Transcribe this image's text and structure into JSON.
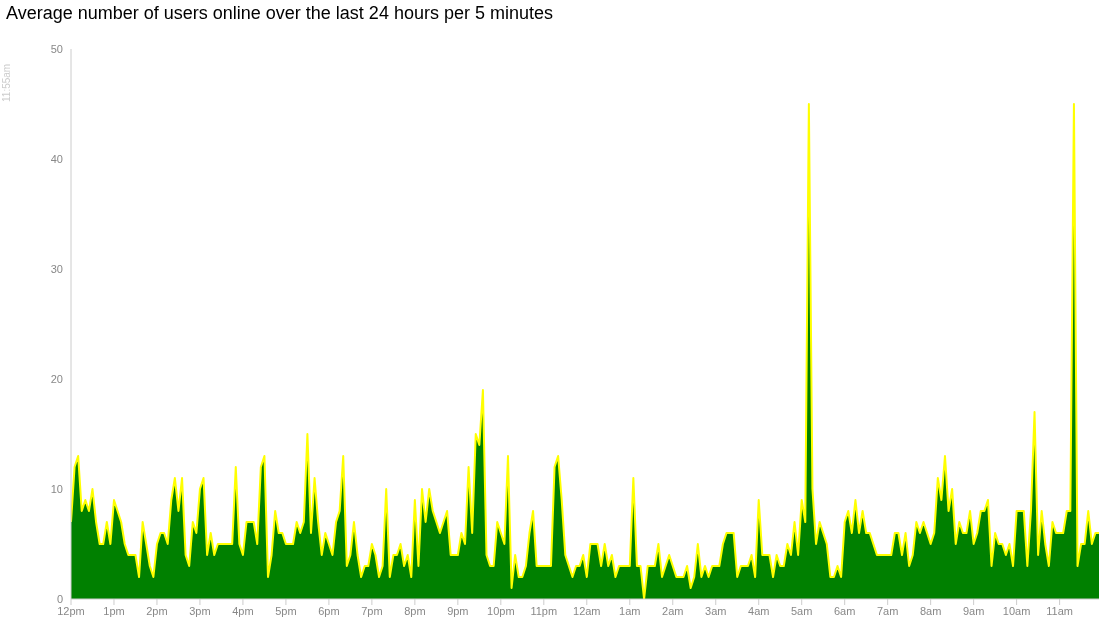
{
  "chart_data": {
    "type": "area",
    "title": "Average number of users online over the last 24 hours per 5 minutes",
    "annotations": [
      "11:55am"
    ],
    "categories": [
      "12pm",
      null,
      null,
      null,
      null,
      null,
      null,
      null,
      null,
      null,
      null,
      null,
      "1pm",
      null,
      null,
      null,
      null,
      null,
      null,
      null,
      null,
      null,
      null,
      null,
      "2pm",
      null,
      null,
      null,
      null,
      null,
      null,
      null,
      null,
      null,
      null,
      null,
      "3pm",
      null,
      null,
      null,
      null,
      null,
      null,
      null,
      null,
      null,
      null,
      null,
      "4pm",
      null,
      null,
      null,
      null,
      null,
      null,
      null,
      null,
      null,
      null,
      null,
      "5pm",
      null,
      null,
      null,
      null,
      null,
      null,
      null,
      null,
      null,
      null,
      null,
      "6pm",
      null,
      null,
      null,
      null,
      null,
      null,
      null,
      null,
      null,
      null,
      null,
      "7pm",
      null,
      null,
      null,
      null,
      null,
      null,
      null,
      null,
      null,
      null,
      null,
      "8pm",
      null,
      null,
      null,
      null,
      null,
      null,
      null,
      null,
      null,
      null,
      null,
      "9pm",
      null,
      null,
      null,
      null,
      null,
      null,
      null,
      null,
      null,
      null,
      null,
      "10pm",
      null,
      null,
      null,
      null,
      null,
      null,
      null,
      null,
      null,
      null,
      null,
      "11pm",
      null,
      null,
      null,
      null,
      null,
      null,
      null,
      null,
      null,
      null,
      null,
      "12am",
      null,
      null,
      null,
      null,
      null,
      null,
      null,
      null,
      null,
      null,
      null,
      "1am",
      null,
      null,
      null,
      null,
      null,
      null,
      null,
      null,
      null,
      null,
      null,
      "2am",
      null,
      null,
      null,
      null,
      null,
      null,
      null,
      null,
      null,
      null,
      null,
      "3am",
      null,
      null,
      null,
      null,
      null,
      null,
      null,
      null,
      null,
      null,
      null,
      "4am",
      null,
      null,
      null,
      null,
      null,
      null,
      null,
      null,
      null,
      null,
      null,
      "5am",
      null,
      null,
      null,
      null,
      null,
      null,
      null,
      null,
      null,
      null,
      null,
      "6am",
      null,
      null,
      null,
      null,
      null,
      null,
      null,
      null,
      null,
      null,
      null,
      "7am",
      null,
      null,
      null,
      null,
      null,
      null,
      null,
      null,
      null,
      null,
      null,
      "8am",
      null,
      null,
      null,
      null,
      null,
      null,
      null,
      null,
      null,
      null,
      null,
      "9am",
      null,
      null,
      null,
      null,
      null,
      null,
      null,
      null,
      null,
      null,
      null,
      "10am",
      null,
      null,
      null,
      null,
      null,
      null,
      null,
      null,
      null,
      null,
      null,
      "11am",
      null,
      null,
      null,
      null,
      null,
      null,
      null,
      null,
      null,
      null,
      null
    ],
    "series": [
      {
        "color": "#008000",
        "values": [
          7,
          12,
          13,
          8,
          9,
          8,
          10,
          7,
          5,
          5,
          7,
          5,
          9,
          8,
          7,
          5,
          4,
          4,
          4,
          2,
          7,
          5,
          3,
          2,
          5,
          6,
          6,
          5,
          9,
          11,
          8,
          11,
          4,
          3,
          7,
          6,
          10,
          11,
          4,
          6,
          4,
          5,
          5,
          5,
          5,
          5,
          12,
          5,
          4,
          7,
          7,
          7,
          5,
          12,
          13,
          2,
          4,
          8,
          6,
          6,
          5,
          5,
          5,
          7,
          6,
          7,
          15,
          6,
          11,
          7,
          4,
          6,
          5,
          4,
          7,
          8,
          13,
          3,
          4,
          7,
          4,
          2,
          3,
          3,
          5,
          4,
          2,
          3,
          10,
          2,
          4,
          4,
          5,
          3,
          4,
          2,
          9,
          3,
          10,
          7,
          10,
          8,
          7,
          6,
          7,
          8,
          4,
          4,
          4,
          6,
          5,
          12,
          6,
          15,
          14,
          19,
          4,
          3,
          3,
          7,
          6,
          5,
          13,
          1,
          4,
          2,
          2,
          3,
          6,
          8,
          3,
          3,
          3,
          3,
          3,
          12,
          13,
          9,
          4,
          3,
          2,
          3,
          3,
          4,
          2,
          5,
          5,
          5,
          3,
          5,
          3,
          4,
          2,
          3,
          3,
          3,
          3,
          11,
          3,
          3,
          0,
          3,
          3,
          3,
          5,
          2,
          3,
          4,
          3,
          2,
          2,
          2,
          3,
          1,
          2,
          5,
          2,
          3,
          2,
          3,
          3,
          3,
          5,
          6,
          6,
          6,
          2,
          3,
          3,
          3,
          4,
          2,
          9,
          4,
          4,
          4,
          2,
          4,
          3,
          3,
          5,
          4,
          7,
          4,
          9,
          7,
          45,
          10,
          5,
          7,
          6,
          5,
          2,
          2,
          3,
          2,
          7,
          8,
          6,
          9,
          6,
          8,
          6,
          6,
          5,
          4,
          4,
          4,
          4,
          4,
          6,
          6,
          4,
          6,
          3,
          4,
          7,
          6,
          7,
          6,
          5,
          6,
          11,
          9,
          13,
          8,
          10,
          5,
          7,
          6,
          6,
          8,
          5,
          6,
          8,
          8,
          9,
          3,
          6,
          5,
          5,
          4,
          5,
          3,
          8,
          8,
          8,
          3,
          8,
          17,
          4,
          8,
          5,
          3,
          7,
          6,
          6,
          6,
          8,
          8,
          45,
          3,
          5,
          5,
          8,
          5,
          6,
          6
        ]
      }
    ],
    "ylim": [
      0,
      50
    ],
    "yticks": [
      0,
      10,
      20,
      30,
      40,
      50
    ],
    "marker": "none"
  }
}
